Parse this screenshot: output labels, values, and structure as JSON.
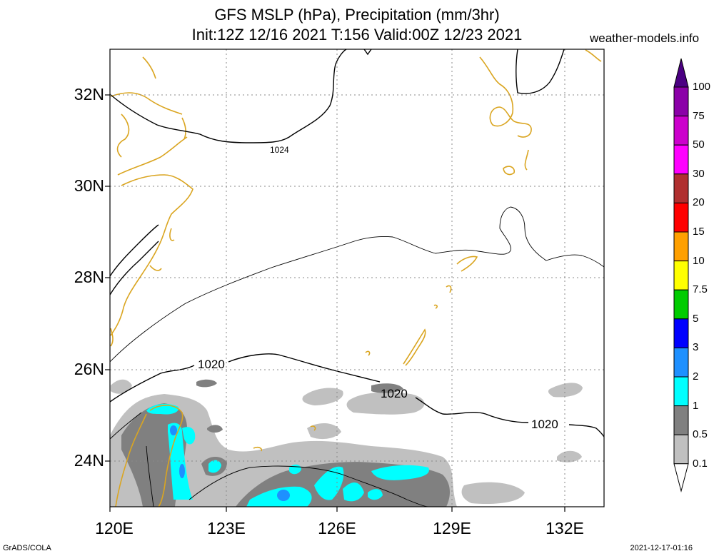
{
  "header": {
    "title_line1": "GFS MSLP (hPa), Precipitation (mm/3hr)",
    "title_line2": "Init:12Z 12/16 2021 T:156 Valid:00Z 12/23 2021",
    "site": "weather-models.info"
  },
  "axes": {
    "lat_labels": [
      "32N",
      "30N",
      "28N",
      "26N",
      "24N"
    ],
    "lon_labels": [
      "120E",
      "123E",
      "126E",
      "129E",
      "132E"
    ]
  },
  "isobars": {
    "label_1024": "1024",
    "label_1020a": "1020",
    "label_1020b": "1020",
    "label_1020c": "1020"
  },
  "legend": {
    "labels": [
      "100",
      "75",
      "50",
      "30",
      "20",
      "15",
      "10",
      "7.5",
      "5",
      "3",
      "2",
      "1",
      "0.5",
      "0.1"
    ],
    "colors": [
      "#8b00a8",
      "#cc00cc",
      "#ff00ff",
      "#b03030",
      "#ff0000",
      "#ffa000",
      "#ffff00",
      "#00cc00",
      "#0000ff",
      "#1e90ff",
      "#00ffff",
      "#808080",
      "#c0c0c0",
      "#ffffff"
    ]
  },
  "footer": {
    "left": "GrADS/COLA",
    "right": "2021-12-17-01:16"
  }
}
